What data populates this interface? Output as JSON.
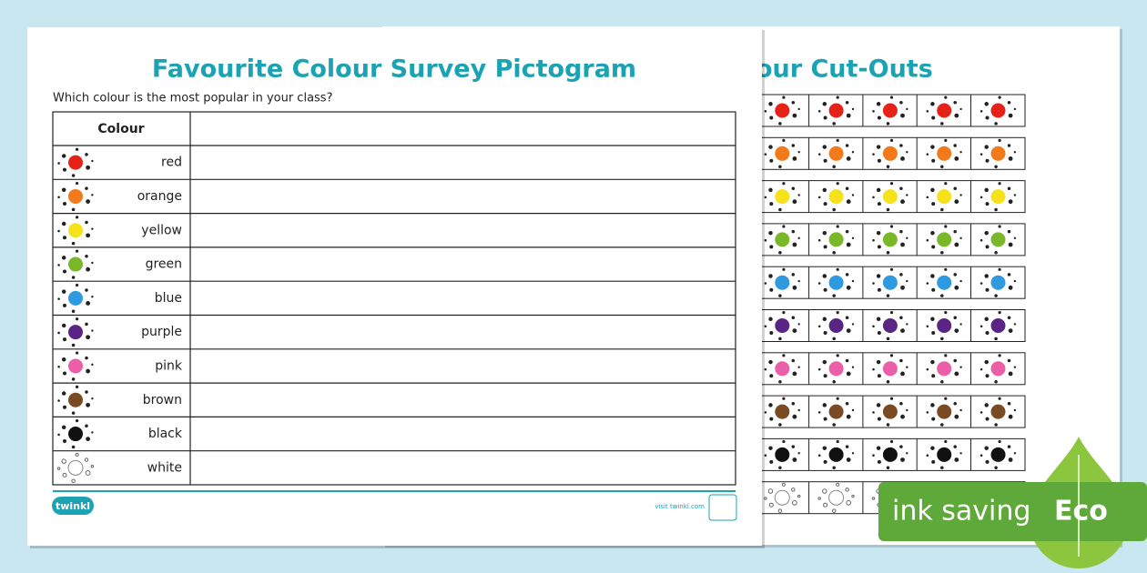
{
  "front": {
    "title": "Favourite Colour Survey Pictogram",
    "question": "Which colour is the most popular in your class?",
    "table": {
      "header": "Colour",
      "rows": [
        {
          "name": "red",
          "color": "#e62218"
        },
        {
          "name": "orange",
          "color": "#f27a1a"
        },
        {
          "name": "yellow",
          "color": "#f5e21a"
        },
        {
          "name": "green",
          "color": "#7ab82a"
        },
        {
          "name": "blue",
          "color": "#2e9be0"
        },
        {
          "name": "purple",
          "color": "#5a2485"
        },
        {
          "name": "pink",
          "color": "#ea5fa8"
        },
        {
          "name": "brown",
          "color": "#7a4a22"
        },
        {
          "name": "black",
          "color": "#111111"
        },
        {
          "name": "white",
          "color": "#ffffff"
        }
      ]
    }
  },
  "footer": {
    "logo": "twinkl",
    "link": "visit twinkl.com"
  },
  "back": {
    "title": "our Cut-Outs"
  },
  "badge": {
    "label": "ink saving",
    "eco": "Eco"
  }
}
